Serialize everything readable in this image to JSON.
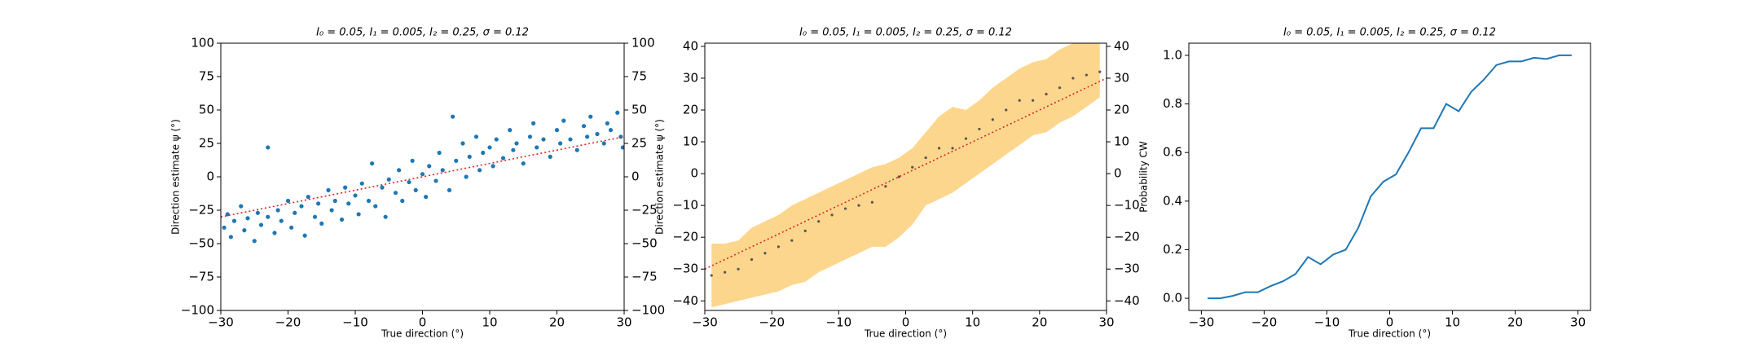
{
  "chart_data": [
    {
      "type": "scatter",
      "title": "I₀ = 0.05, I₁ = 0.005, I₂ = 0.25, σ = 0.12",
      "x_label": "True direction (°)",
      "y_label": "Direction estimate ψ (°)",
      "color": "#1f77b4",
      "mirror_y_ticks": true,
      "xlim": [
        -30,
        30
      ],
      "ylim": [
        -100,
        100
      ],
      "xticks": [
        {
          "value": -30,
          "label": "−30"
        },
        {
          "value": -20,
          "label": "−20"
        },
        {
          "value": -10,
          "label": "−10"
        },
        0,
        10,
        20,
        30
      ],
      "yticks": [
        {
          "value": -100,
          "label": "−100"
        },
        {
          "value": -75,
          "label": "−75"
        },
        {
          "value": -50,
          "label": "−50"
        },
        {
          "value": -25,
          "label": "−25"
        },
        0,
        25,
        50,
        75,
        100
      ],
      "x": [
        -29.5,
        -29,
        -28.5,
        -28,
        -27,
        -26.5,
        -26,
        -25,
        -24.5,
        -24,
        -23,
        -23,
        -22,
        -21.5,
        -21,
        -20,
        -19.5,
        -19,
        -18,
        -17.5,
        -17,
        -16,
        -15.5,
        -15,
        -14,
        -13.5,
        -13,
        -12,
        -11.5,
        -11,
        -10,
        -9.5,
        -9,
        -8,
        -7.5,
        -7,
        -6,
        -5.5,
        -5,
        -4,
        -3.5,
        -3,
        -2,
        -1.5,
        -1,
        0,
        0.5,
        1,
        2,
        2.5,
        3,
        4,
        4.5,
        5,
        6,
        6.5,
        7,
        8,
        8.5,
        9,
        10,
        10.5,
        11,
        12,
        13,
        13.5,
        14,
        15,
        16,
        16.5,
        17,
        18,
        19,
        20,
        20.5,
        21,
        22,
        23,
        24,
        24.5,
        25,
        26,
        27,
        27.5,
        28,
        29,
        29.5,
        29.8
      ],
      "y": [
        -38,
        -28,
        -45,
        -33,
        -22,
        -40,
        -31,
        -48,
        -27,
        -36,
        22,
        -30,
        -42,
        -25,
        -33,
        -18,
        -38,
        -27,
        -22,
        -44,
        -15,
        -30,
        -20,
        -35,
        -10,
        -25,
        -18,
        -32,
        -8,
        -20,
        -14,
        -28,
        -5,
        -18,
        10,
        -22,
        -8,
        -30,
        -2,
        -12,
        5,
        -18,
        -4,
        12,
        -10,
        2,
        -15,
        8,
        -3,
        18,
        5,
        -10,
        45,
        12,
        25,
        0,
        15,
        30,
        5,
        18,
        22,
        8,
        28,
        14,
        35,
        20,
        25,
        10,
        30,
        40,
        22,
        28,
        15,
        35,
        25,
        42,
        28,
        20,
        38,
        30,
        45,
        32,
        25,
        40,
        35,
        48,
        30,
        22
      ],
      "reference_line": {
        "x": [
          -30,
          30
        ],
        "values": [
          -30,
          30
        ],
        "color": "#d62728"
      }
    },
    {
      "type": "scatter",
      "title": "I₀ = 0.05, I₁ = 0.005, I₂ = 0.25, σ = 0.12",
      "x_label": "True direction (°)",
      "y_label": "Direction estimate ψ (°)",
      "color": "#555555",
      "band_color": "#fdd68d",
      "mirror_y_ticks": true,
      "xlim": [
        -30,
        30
      ],
      "ylim": [
        -43,
        41
      ],
      "xticks": [
        {
          "value": -30,
          "label": "−30"
        },
        {
          "value": -20,
          "label": "−20"
        },
        {
          "value": -10,
          "label": "−10"
        },
        0,
        10,
        20,
        30
      ],
      "yticks": [
        {
          "value": -40,
          "label": "−40"
        },
        {
          "value": -30,
          "label": "−30"
        },
        {
          "value": -20,
          "label": "−20"
        },
        {
          "value": -10,
          "label": "−10"
        },
        0,
        10,
        20,
        30,
        40
      ],
      "x": [
        -29,
        -27,
        -25,
        -23,
        -21,
        -19,
        -17,
        -15,
        -13,
        -11,
        -9,
        -7,
        -5,
        -3,
        -1,
        1,
        3,
        5,
        7,
        9,
        11,
        13,
        15,
        17,
        19,
        21,
        23,
        25,
        27,
        29
      ],
      "y": [
        -32,
        -31,
        -30,
        -27,
        -25,
        -23,
        -21,
        -18,
        -15,
        -13,
        -11,
        -10,
        -9,
        -4,
        -1,
        2,
        5,
        8,
        8,
        11,
        14,
        17,
        20,
        23,
        23,
        25,
        27,
        30,
        31,
        32
      ],
      "lower": [
        -42,
        -41,
        -40,
        -39,
        -38,
        -37,
        -35,
        -34,
        -31,
        -29,
        -27,
        -25,
        -23,
        -23,
        -20,
        -16,
        -10,
        -8,
        -6,
        -3,
        0,
        3,
        6,
        9,
        12,
        13,
        16,
        18,
        21,
        24
      ],
      "upper": [
        -22,
        -22,
        -21,
        -17,
        -15,
        -13,
        -10,
        -8,
        -6,
        -4,
        -2,
        0,
        2,
        3,
        5,
        8,
        13,
        18,
        21,
        20,
        23,
        27,
        30,
        33,
        35,
        36,
        39,
        41,
        42,
        43
      ],
      "reference_line": {
        "x": [
          -30,
          30
        ],
        "values": [
          -30,
          30
        ],
        "color": "#d62728"
      }
    },
    {
      "type": "line",
      "title": "I₀ = 0.05, I₁ = 0.005, I₂ = 0.25, σ = 0.12",
      "x_label": "True direction (°)",
      "y_label": "Probability CW",
      "color": "#1f77b4",
      "xlim": [
        -32,
        32
      ],
      "ylim": [
        -0.05,
        1.05
      ],
      "xticks": [
        {
          "value": -30,
          "label": "−30"
        },
        {
          "value": -20,
          "label": "−20"
        },
        {
          "value": -10,
          "label": "−10"
        },
        0,
        10,
        20,
        30
      ],
      "yticks": [
        {
          "value": 0,
          "label": "0.0"
        },
        0.2,
        0.4,
        0.6,
        0.8,
        {
          "value": 1,
          "label": "1.0"
        }
      ],
      "x": [
        -29,
        -27,
        -25,
        -23,
        -21,
        -19,
        -17,
        -15,
        -13,
        -11,
        -9,
        -7,
        -5,
        -3,
        -1,
        1,
        3,
        5,
        7,
        9,
        11,
        13,
        15,
        17,
        19,
        21,
        23,
        25,
        27,
        29
      ],
      "values": [
        0,
        0,
        0.01,
        0.025,
        0.025,
        0.05,
        0.07,
        0.1,
        0.17,
        0.14,
        0.18,
        0.2,
        0.29,
        0.42,
        0.48,
        0.51,
        0.6,
        0.7,
        0.7,
        0.8,
        0.77,
        0.85,
        0.9,
        0.96,
        0.975,
        0.975,
        0.99,
        0.985,
        1,
        1
      ]
    }
  ]
}
